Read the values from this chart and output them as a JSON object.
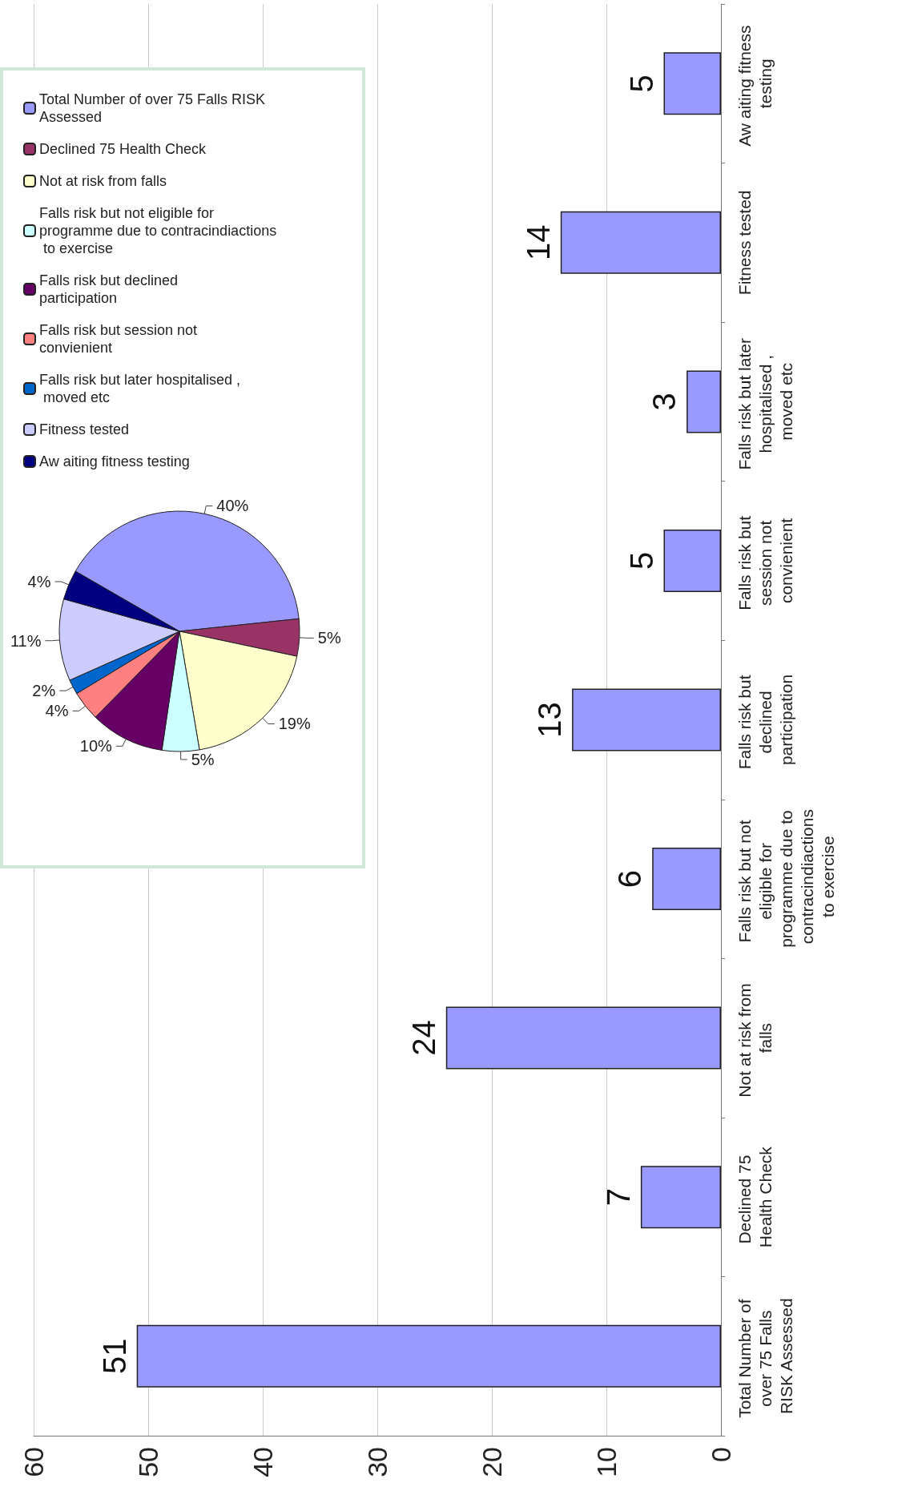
{
  "chart_data": [
    {
      "type": "bar",
      "orientation": "horizontal",
      "categories": [
        "Aw aiting fitness testing",
        "Fitness tested",
        "Falls risk but later hospitalised , moved etc",
        "Falls risk but session not convienient",
        "Falls risk but declined participation",
        "Falls risk but not eligible for programme due to contracindiactions to exercise",
        "Not at risk from falls",
        "Declined 75 Health Check",
        "Total Number of over 75 Falls RISK Assessed"
      ],
      "values": [
        5,
        14,
        3,
        5,
        13,
        6,
        24,
        7,
        51
      ],
      "color": "#9999ff",
      "xlim": [
        60,
        0
      ],
      "xticks": [
        0,
        10,
        20,
        30,
        40,
        50,
        60
      ],
      "grid": "x",
      "data_labels": true
    },
    {
      "type": "pie",
      "categories": [
        "Total Number of over 75 Falls RISK Assessed",
        "Declined 75 Health Check",
        "Not at risk from falls",
        "Falls risk but not eligible for programme due to contracindiactions to exercise",
        "Falls risk but declined participation",
        "Falls risk but session not convienient",
        "Falls risk but later hospitalised , moved etc",
        "Fitness tested",
        "Aw aiting fitness testing"
      ],
      "values": [
        40,
        5,
        19,
        5,
        10,
        4,
        2,
        11,
        4
      ],
      "value_labels": [
        "40%",
        "5%",
        "19%",
        "5%",
        "10%",
        "4%",
        "2%",
        "11%",
        "4%"
      ],
      "colors": [
        "#9999ff",
        "#993366",
        "#ffffcc",
        "#ccffff",
        "#660066",
        "#ff8080",
        "#0066cc",
        "#ccccff",
        "#000080"
      ],
      "legend": "top"
    }
  ]
}
